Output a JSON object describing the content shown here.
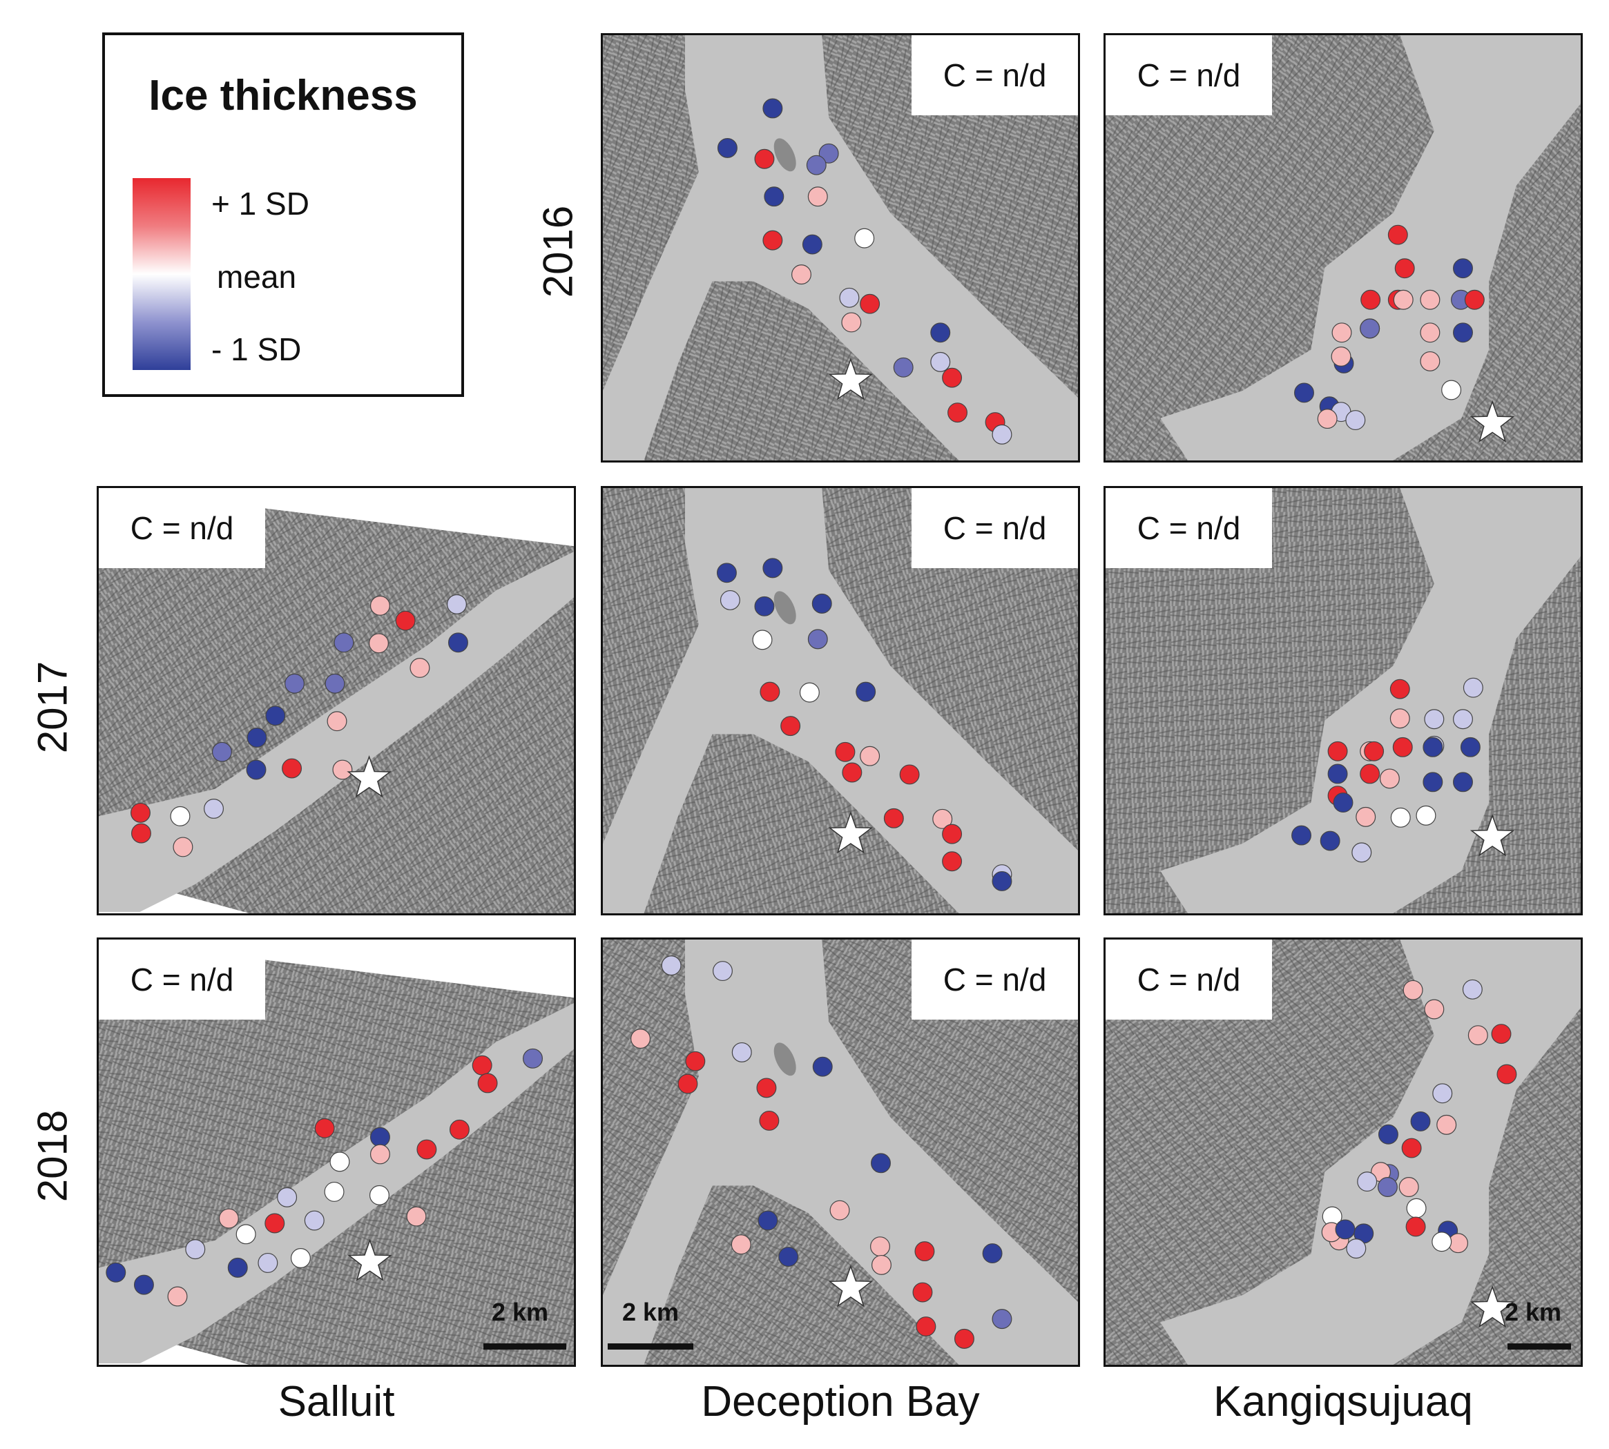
{
  "legend": {
    "title": "Ice thickness",
    "upper_label": "+ 1 SD",
    "mid_label": "mean",
    "lower_label": "- 1 SD",
    "colors": {
      "plus": "#e8282f",
      "mean": "#ffffff",
      "minus": "#2f3f99"
    }
  },
  "years": [
    "2016",
    "2017",
    "2018"
  ],
  "sites": [
    "Salluit",
    "Deception Bay",
    "Kangiqsujuaq"
  ],
  "c_label": "C = n/d",
  "scale_label": "2 km",
  "colors": {
    "land": "#7e7e7e",
    "water": "#c3c3c3",
    "red": "#e8282f",
    "light_red": "#f6b9b9",
    "white": "#ffffff",
    "light_blue": "#c9c9e8",
    "mid_blue": "#6c6fb8",
    "blue": "#2f3f99",
    "gray_oval": "#8a8a8a"
  },
  "marker_note": "star",
  "panels": [
    {
      "year": "2016",
      "site": "Deception Bay",
      "points": [
        {
          "v": -1
        },
        {
          "v": -1
        },
        {
          "v": -0.8
        },
        {
          "v": 0.9
        },
        {
          "v": -0.8
        },
        {
          "v": -1
        },
        {
          "v": 0.7
        },
        {
          "v": 0.9
        },
        {
          "v": -0.9
        },
        {
          "v": 0.3
        },
        {
          "v": 0.8
        },
        {
          "v": -0.3
        },
        {
          "v": 1
        },
        {
          "v": 0.5
        },
        {
          "v": -1
        },
        {
          "v": -0.7
        },
        {
          "v": -0.3
        },
        {
          "v": 1
        },
        {
          "v": 0.9
        },
        {
          "v": 1
        },
        {
          "v": -0.2
        }
      ]
    },
    {
      "year": "2016",
      "site": "Kangiqsujuaq",
      "points": [
        {
          "v": 1
        },
        {
          "v": 1
        },
        {
          "v": -1
        },
        {
          "v": 0.7
        },
        {
          "v": 1
        },
        {
          "v": 1
        },
        {
          "v": -0.8
        },
        {
          "v": 0.9
        },
        {
          "v": 0.4
        },
        {
          "v": -1
        },
        {
          "v": -0.7
        },
        {
          "v": 0.4
        },
        {
          "v": -1
        },
        {
          "v": 0.8
        },
        {
          "v": -1
        },
        {
          "v": 0.8
        },
        {
          "v": 0.4
        },
        {
          "v": 0.0
        },
        {
          "v": -1
        },
        {
          "v": -0.9
        },
        {
          "v": -0.3
        },
        {
          "v": 0.4
        },
        {
          "v": -0.3
        }
      ]
    },
    {
      "year": "2017",
      "site": "Salluit",
      "points": [
        {
          "v": 0.4
        },
        {
          "v": 1
        },
        {
          "v": -0.2
        },
        {
          "v": -0.8
        },
        {
          "v": 0.4
        },
        {
          "v": -0.9
        },
        {
          "v": 0.6
        },
        {
          "v": -0.7
        },
        {
          "v": -0.6
        },
        {
          "v": -1
        },
        {
          "v": 0.6
        },
        {
          "v": -1
        },
        {
          "v": -0.6
        },
        {
          "v": -1
        },
        {
          "v": 1
        },
        {
          "v": 0.5
        },
        {
          "v": 1
        },
        {
          "v": 0.3
        },
        {
          "v": -0.3
        },
        {
          "v": 1
        },
        {
          "v": 0.7
        }
      ]
    },
    {
      "year": "2017",
      "site": "Deception Bay",
      "points": [
        {
          "v": -1
        },
        {
          "v": -1
        },
        {
          "v": -0.3
        },
        {
          "v": -1
        },
        {
          "v": -1
        },
        {
          "v": 0.0
        },
        {
          "v": -0.8
        },
        {
          "v": 1
        },
        {
          "v": 0.2
        },
        {
          "v": -1
        },
        {
          "v": 1
        },
        {
          "v": 1
        },
        {
          "v": 0.8
        },
        {
          "v": 1
        },
        {
          "v": 1
        },
        {
          "v": 1
        },
        {
          "v": 0.5
        },
        {
          "v": 1
        },
        {
          "v": 1
        },
        {
          "v": -0.3
        },
        {
          "v": -1
        }
      ]
    },
    {
      "year": "2017",
      "site": "Kangiqsujuaq",
      "points": [
        {
          "v": 1
        },
        {
          "v": -0.3
        },
        {
          "v": 0.8
        },
        {
          "v": -0.2
        },
        {
          "v": -0.2
        },
        {
          "v": -0.2
        },
        {
          "v": -1
        },
        {
          "v": 1
        },
        {
          "v": 0.8
        },
        {
          "v": 1
        },
        {
          "v": 1
        },
        {
          "v": -1
        },
        {
          "v": -1
        },
        {
          "v": 1
        },
        {
          "v": 1
        },
        {
          "v": 0.5
        },
        {
          "v": -1
        },
        {
          "v": -1
        },
        {
          "v": -1
        },
        {
          "v": 0.8
        },
        {
          "v": 0.2
        },
        {
          "v": 0.3
        },
        {
          "v": -1
        },
        {
          "v": -1
        },
        {
          "v": -0.3
        }
      ]
    },
    {
      "year": "2018",
      "site": "Salluit",
      "points": [
        {
          "v": -1
        },
        {
          "v": -1
        },
        {
          "v": 0.8
        },
        {
          "v": -0.2
        },
        {
          "v": 0.2
        },
        {
          "v": -1
        },
        {
          "v": -0.2
        },
        {
          "v": 0.3
        },
        {
          "v": -0.2
        },
        {
          "v": 0.2
        },
        {
          "v": 1
        },
        {
          "v": -1
        },
        {
          "v": 0.7
        },
        {
          "v": 0.3
        },
        {
          "v": 0.2
        },
        {
          "v": 1
        },
        {
          "v": 1
        },
        {
          "v": 1
        },
        {
          "v": -0.8
        },
        {
          "v": 1
        },
        {
          "v": 0.6
        },
        {
          "v": -0.3
        },
        {
          "v": 1
        },
        {
          "v": 0.6
        }
      ]
    },
    {
      "year": "2018",
      "site": "Deception Bay",
      "points": [
        {
          "v": -0.3
        },
        {
          "v": -0.2
        },
        {
          "v": 0.5
        },
        {
          "v": 1
        },
        {
          "v": -0.2
        },
        {
          "v": 1
        },
        {
          "v": 1
        },
        {
          "v": -1
        },
        {
          "v": 1
        },
        {
          "v": -1
        },
        {
          "v": 0.6
        },
        {
          "v": -1
        },
        {
          "v": 0.6
        },
        {
          "v": -1
        },
        {
          "v": 0.7
        },
        {
          "v": 1
        },
        {
          "v": 0.5
        },
        {
          "v": 1
        },
        {
          "v": -1
        },
        {
          "v": 1
        },
        {
          "v": 1
        },
        {
          "v": -0.8
        }
      ]
    },
    {
      "year": "2018",
      "site": "Kangiqsujuaq",
      "points": [
        {
          "v": 0.5
        },
        {
          "v": -0.2
        },
        {
          "v": 0.8
        },
        {
          "v": 0.5
        },
        {
          "v": 1
        },
        {
          "v": -0.3
        },
        {
          "v": 1
        },
        {
          "v": 0.8
        },
        {
          "v": 1
        },
        {
          "v": -1
        },
        {
          "v": -1
        },
        {
          "v": 0.8
        },
        {
          "v": -0.5
        },
        {
          "v": 0.4
        },
        {
          "v": -0.3
        },
        {
          "v": -0.7
        },
        {
          "v": 0.2
        },
        {
          "v": 0.5
        },
        {
          "v": -0.1
        },
        {
          "v": -1
        },
        {
          "v": -1
        },
        {
          "v": 0.6
        },
        {
          "v": 1
        },
        {
          "v": 0.8
        },
        {
          "v": 0.1
        },
        {
          "v": -1
        },
        {
          "v": -0.2
        }
      ]
    }
  ]
}
